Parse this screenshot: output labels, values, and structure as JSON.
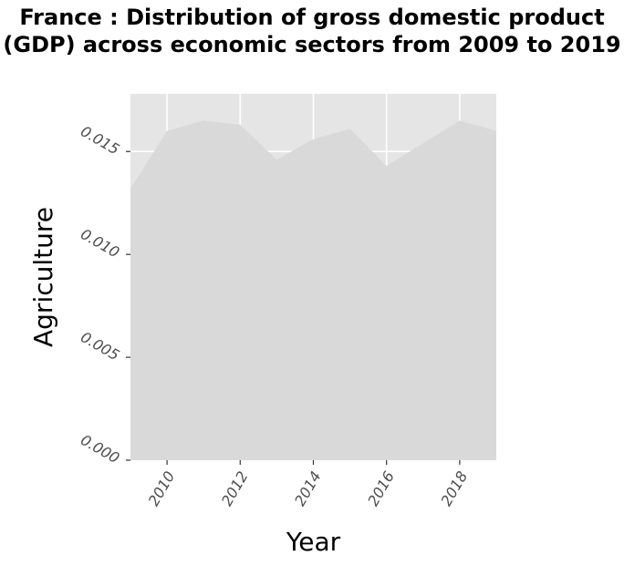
{
  "chart_data": {
    "type": "area",
    "title": "France : Distribution of gross domestic product (GDP) across economic sectors from 2009 to 2019",
    "xlabel": "Year",
    "ylabel": "Agriculture",
    "x": [
      2009,
      2010,
      2011,
      2012,
      2013,
      2014,
      2015,
      2016,
      2017,
      2018,
      2019
    ],
    "series": [
      {
        "values": [
          0.0132,
          0.016,
          0.0165,
          0.0163,
          0.0146,
          0.0156,
          0.0161,
          0.0143,
          0.0154,
          0.0165,
          0.016
        ]
      }
    ],
    "xlim": [
      2009,
      2019
    ],
    "ylim": [
      0,
      0.0178
    ],
    "xticks": [
      2010,
      2012,
      2014,
      2016,
      2018
    ],
    "yticks": [
      0.0,
      0.005,
      0.01,
      0.015
    ],
    "xtick_labels": [
      "2010",
      "2012",
      "2014",
      "2016",
      "2018"
    ],
    "ytick_labels": [
      "0.000",
      "0.005",
      "0.010",
      "0.015"
    ],
    "grid": true,
    "colors": {
      "panel": "#e5e5e5",
      "grid": "#ffffff",
      "area": "#d9d9d9",
      "tick_text": "#4d4d4d",
      "tick_mark": "#333333"
    }
  }
}
